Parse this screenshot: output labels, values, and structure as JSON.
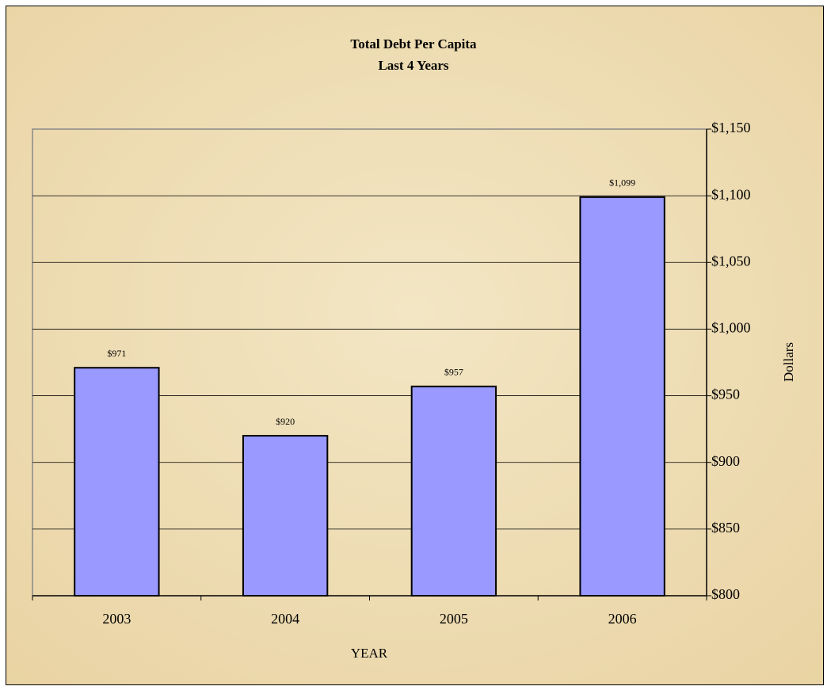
{
  "chart_data": {
    "type": "bar",
    "title": [
      "Total Debt Per Capita",
      "Last 4 Years"
    ],
    "categories": [
      "2003",
      "2004",
      "2005",
      "2006"
    ],
    "values": [
      971,
      920,
      957,
      1099
    ],
    "value_labels": [
      "$971",
      "$920",
      "$957",
      "$1,099"
    ],
    "color": "#9999ff",
    "xlabel": "YEAR",
    "ylabel": "Dollars",
    "ylim": [
      800,
      1150
    ],
    "yticks": [
      {
        "value": 800,
        "label": "$800"
      },
      {
        "value": 850,
        "label": "$850"
      },
      {
        "value": 900,
        "label": "$900"
      },
      {
        "value": 950,
        "label": "$950"
      },
      {
        "value": 1000,
        "label": "$1,000"
      },
      {
        "value": 1050,
        "label": "$1,050"
      },
      {
        "value": 1100,
        "label": "$1,100"
      },
      {
        "value": 1150,
        "label": "$1,150"
      }
    ],
    "grid": true,
    "yaxis_side": "right"
  }
}
